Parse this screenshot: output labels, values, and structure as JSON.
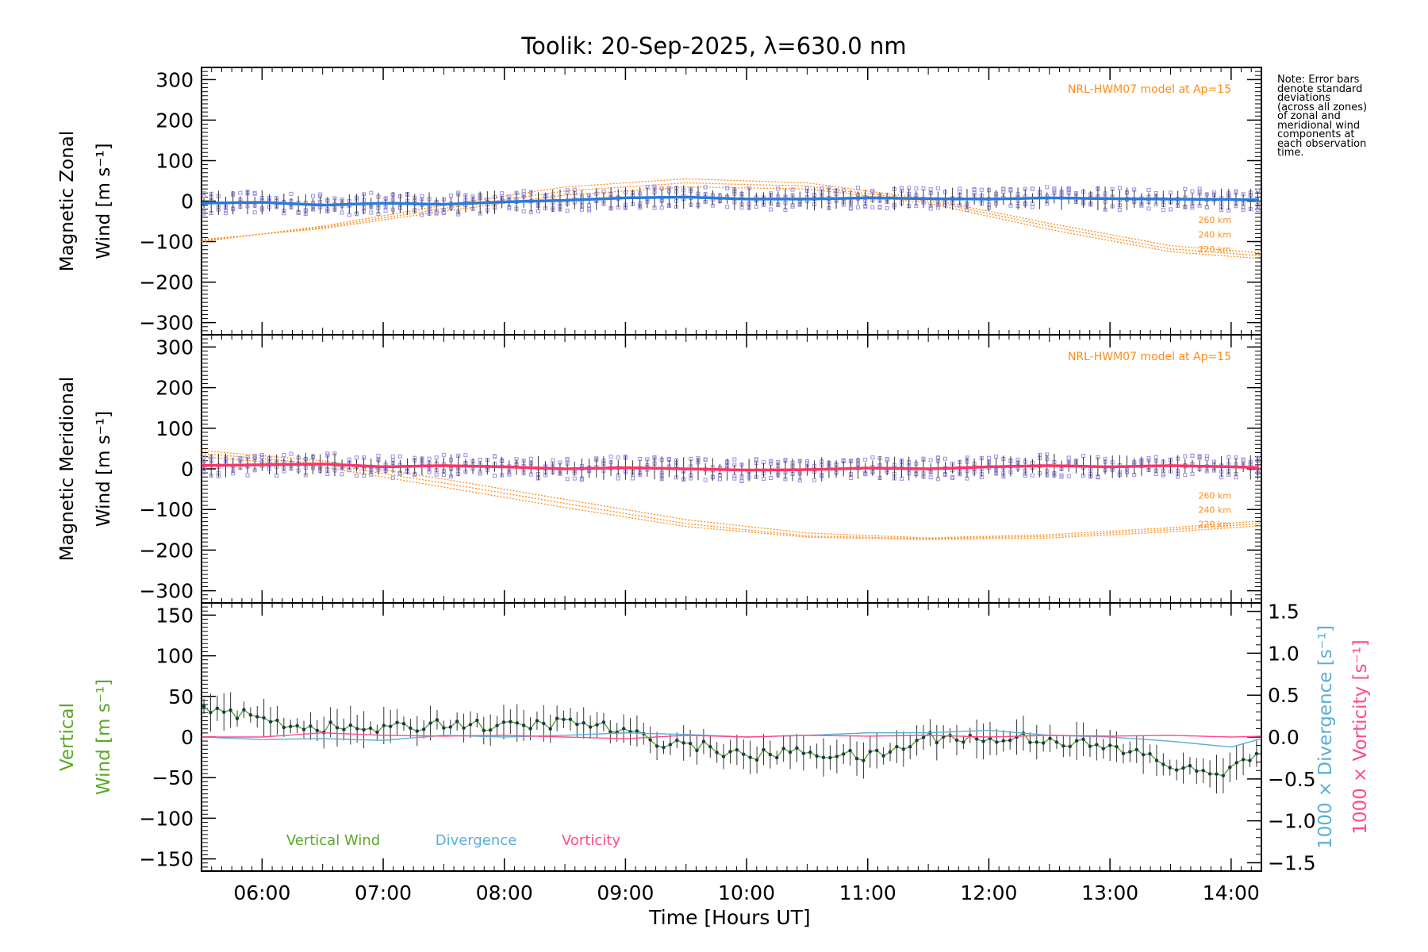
{
  "title": "Toolik: 20-Sep-2025, λ=630.0 nm",
  "note_lines": [
    "Note: Error bars",
    "denote standard",
    "deviations",
    "(across all zones)",
    "of zonal and",
    "meridional wind",
    "components at",
    "each observation",
    "time."
  ],
  "colors": {
    "model": "#ff8c1a",
    "zonal": "#2b7bd9",
    "meridional": "#ff3366",
    "vertical": "#5aa827",
    "divergence": "#5aaed9",
    "vorticity": "#ff4a8a",
    "zone_box": "#9b8fe0",
    "error": "#333333"
  },
  "chart_data": [
    {
      "type": "line",
      "panel": "zonal",
      "ylabel_line1": "Magnetic Zonal",
      "ylabel_line2": "Wind [m s⁻¹]",
      "ylim": [
        -330,
        330
      ],
      "yticks": [
        -300,
        -200,
        -100,
        0,
        100,
        200,
        300
      ],
      "model_label": "NRL-HWM07 model at Ap=15",
      "model_curves": [
        {
          "label": "260 km",
          "x": [
            5.5,
            6.5,
            7.5,
            8.5,
            9.5,
            10.5,
            11.5,
            12.5,
            13.5,
            14.25
          ],
          "values": [
            -100,
            -62,
            -10,
            35,
            55,
            45,
            5,
            -55,
            -110,
            -128
          ]
        },
        {
          "label": "240 km",
          "x": [
            5.5,
            6.5,
            7.5,
            8.5,
            9.5,
            10.5,
            11.5,
            12.5,
            13.5,
            14.25
          ],
          "values": [
            -97,
            -65,
            -18,
            25,
            45,
            37,
            0,
            -62,
            -118,
            -135
          ]
        },
        {
          "label": "220 km",
          "x": [
            5.5,
            6.5,
            7.5,
            8.5,
            9.5,
            10.5,
            11.5,
            12.5,
            13.5,
            14.25
          ],
          "values": [
            -95,
            -68,
            -25,
            15,
            35,
            30,
            -5,
            -70,
            -125,
            -142
          ]
        }
      ],
      "series": [
        {
          "name": "Magnetic Zonal Wind",
          "x": [
            5.5,
            6.0,
            6.5,
            7.0,
            7.5,
            8.0,
            8.5,
            9.0,
            9.5,
            10.0,
            10.5,
            11.0,
            11.5,
            12.0,
            12.5,
            13.0,
            13.5,
            14.0,
            14.25
          ],
          "values": [
            -5,
            -3,
            -10,
            -5,
            -8,
            -2,
            2,
            8,
            10,
            5,
            5,
            8,
            6,
            5,
            8,
            6,
            5,
            4,
            3
          ]
        }
      ]
    },
    {
      "type": "line",
      "panel": "meridional",
      "ylabel_line1": "Magnetic Meridional",
      "ylabel_line2": "Wind [m s⁻¹]",
      "ylim": [
        -330,
        330
      ],
      "yticks": [
        -300,
        -200,
        -100,
        0,
        100,
        200,
        300
      ],
      "model_label": "NRL-HWM07 model at Ap=15",
      "model_curves": [
        {
          "label": "260 km",
          "x": [
            5.5,
            6.5,
            7.5,
            8.5,
            9.5,
            10.5,
            11.5,
            12.5,
            13.5,
            14.25
          ],
          "values": [
            45,
            20,
            -25,
            -75,
            -125,
            -158,
            -170,
            -162,
            -145,
            -128
          ]
        },
        {
          "label": "240 km",
          "x": [
            5.5,
            6.5,
            7.5,
            8.5,
            9.5,
            10.5,
            11.5,
            12.5,
            13.5,
            14.25
          ],
          "values": [
            38,
            12,
            -35,
            -85,
            -135,
            -165,
            -172,
            -166,
            -150,
            -134
          ]
        },
        {
          "label": "220 km",
          "x": [
            5.5,
            6.5,
            7.5,
            8.5,
            9.5,
            10.5,
            11.5,
            12.5,
            13.5,
            14.25
          ],
          "values": [
            30,
            5,
            -45,
            -95,
            -142,
            -168,
            -174,
            -170,
            -155,
            -140
          ]
        }
      ],
      "series": [
        {
          "name": "Magnetic Meridional Wind",
          "x": [
            5.5,
            6.0,
            6.5,
            7.0,
            7.5,
            8.0,
            8.5,
            9.0,
            9.5,
            10.0,
            10.5,
            11.0,
            11.5,
            12.0,
            12.5,
            13.0,
            13.5,
            14.0,
            14.25
          ],
          "values": [
            8,
            10,
            12,
            5,
            8,
            5,
            0,
            3,
            0,
            -3,
            -2,
            2,
            0,
            5,
            8,
            5,
            8,
            5,
            3
          ]
        }
      ]
    },
    {
      "type": "line",
      "panel": "vertical",
      "ylabel_line1": "Vertical",
      "ylabel_line2": "Wind [m s⁻¹]",
      "ylim": [
        -165,
        165
      ],
      "yticks": [
        -150,
        -100,
        -50,
        0,
        50,
        100,
        150
      ],
      "right_ylim": [
        -1.6,
        1.6
      ],
      "right_yticks": [
        -1.5,
        -1.0,
        -0.5,
        0.0,
        0.5,
        1.0,
        1.5
      ],
      "right_ylabel_divergence": "1000 × Divergence [s⁻¹]",
      "right_ylabel_vorticity": "1000 × Vorticity [s⁻¹]",
      "legend": [
        "Vertical Wind",
        "Divergence",
        "Vorticity"
      ],
      "series": [
        {
          "name": "Vertical Wind",
          "x": [
            5.5,
            5.75,
            6.0,
            6.25,
            6.5,
            6.75,
            7.0,
            7.25,
            7.5,
            7.75,
            8.0,
            8.25,
            8.5,
            8.75,
            9.0,
            9.25,
            9.5,
            9.75,
            10.0,
            10.25,
            10.5,
            10.75,
            11.0,
            11.25,
            11.5,
            11.75,
            12.0,
            12.25,
            12.5,
            12.75,
            13.0,
            13.25,
            13.5,
            13.75,
            14.0,
            14.25
          ],
          "values": [
            40,
            30,
            22,
            15,
            12,
            10,
            10,
            12,
            18,
            15,
            12,
            15,
            18,
            15,
            5,
            -5,
            -8,
            -15,
            -25,
            -20,
            -18,
            -22,
            -25,
            -15,
            0,
            0,
            -5,
            0,
            -3,
            -8,
            -15,
            -20,
            -35,
            -45,
            -40,
            -20
          ]
        },
        {
          "name": "Divergence",
          "x": [
            5.5,
            6.0,
            6.5,
            7.0,
            7.5,
            8.0,
            8.5,
            9.0,
            9.5,
            10.0,
            10.5,
            11.0,
            11.5,
            12.0,
            12.5,
            13.0,
            13.5,
            14.0,
            14.25
          ],
          "values": [
            0.0,
            -0.03,
            -0.02,
            -0.04,
            0.02,
            0.0,
            0.02,
            0.05,
            0.03,
            0.0,
            0.02,
            0.05,
            0.05,
            0.08,
            0.02,
            0.0,
            -0.05,
            -0.12,
            -0.02
          ]
        },
        {
          "name": "Vorticity",
          "x": [
            5.5,
            6.0,
            6.5,
            7.0,
            7.5,
            8.0,
            8.5,
            9.0,
            9.5,
            10.0,
            10.5,
            11.0,
            11.5,
            12.0,
            12.5,
            13.0,
            13.5,
            14.0,
            14.25
          ],
          "values": [
            0.0,
            0.0,
            0.05,
            0.02,
            0.01,
            0.02,
            0.0,
            -0.02,
            0.02,
            0.0,
            0.02,
            0.01,
            0.02,
            0.0,
            0.02,
            0.01,
            0.02,
            0.0,
            0.01
          ]
        }
      ]
    }
  ],
  "x_axis": {
    "xlim": [
      5.5,
      14.25
    ],
    "ticks": [
      6,
      7,
      8,
      9,
      10,
      11,
      12,
      13,
      14
    ],
    "tick_labels": [
      "06:00",
      "07:00",
      "08:00",
      "09:00",
      "10:00",
      "11:00",
      "12:00",
      "13:00",
      "14:00"
    ],
    "label": "Time [Hours UT]"
  }
}
